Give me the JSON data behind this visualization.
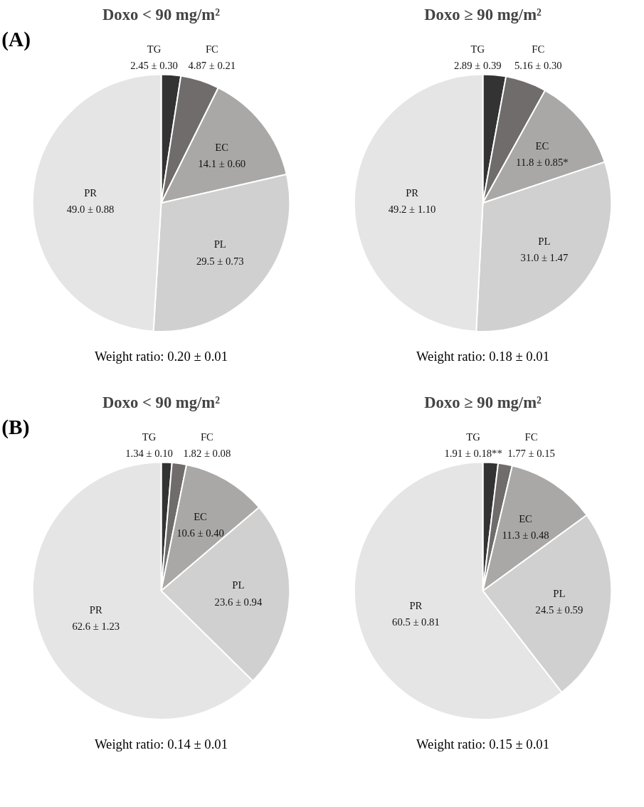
{
  "chart_data": [
    {
      "type": "pie",
      "title": "Doxo < 90 mg/m²",
      "categories": [
        "TG",
        "FC",
        "EC",
        "PL",
        "PR"
      ],
      "values": [
        2.45,
        4.87,
        14.1,
        29.5,
        49.0
      ],
      "value_labels": [
        "2.45 ± 0.30",
        "4.87 ± 0.21",
        "14.1 ± 0.60",
        "29.5 ± 0.73",
        "49.0 ± 0.88"
      ],
      "colors": [
        "#333333",
        "#6f6c6b",
        "#aaa8a7",
        "#d1d0d0",
        "#e5e5e5"
      ],
      "annotations": [
        "(A)",
        "Weight ratio: 0.20 ± 0.01"
      ]
    },
    {
      "type": "pie",
      "title": "Doxo ≥ 90 mg/m²",
      "categories": [
        "TG",
        "FC",
        "EC",
        "PL",
        "PR"
      ],
      "values": [
        2.89,
        5.16,
        11.8,
        31.0,
        49.2
      ],
      "value_labels": [
        "2.89 ± 0.39",
        "5.16 ± 0.30",
        "11.8 ± 0.85*",
        "31.0 ± 1.47",
        "49.2 ± 1.10"
      ],
      "colors": [
        "#333333",
        "#6f6c6b",
        "#aaa8a7",
        "#d1d0d0",
        "#e5e5e5"
      ],
      "annotations": [
        "Weight ratio: 0.18 ± 0.01"
      ]
    },
    {
      "type": "pie",
      "title": "Doxo < 90 mg/m²",
      "categories": [
        "TG",
        "FC",
        "EC",
        "PL",
        "PR"
      ],
      "values": [
        1.34,
        1.82,
        10.6,
        23.6,
        62.6
      ],
      "value_labels": [
        "1.34 ± 0.10",
        "1.82 ± 0.08",
        "10.6 ± 0.40",
        "23.6 ± 0.94",
        "62.6 ± 1.23"
      ],
      "colors": [
        "#333333",
        "#6f6c6b",
        "#aaa8a7",
        "#d1d0d0",
        "#e5e5e5"
      ],
      "annotations": [
        "(B)",
        "Weight ratio: 0.14 ± 0.01"
      ]
    },
    {
      "type": "pie",
      "title": "Doxo ≥ 90 mg/m²",
      "categories": [
        "TG",
        "FC",
        "EC",
        "PL",
        "PR"
      ],
      "values": [
        1.91,
        1.77,
        11.3,
        24.5,
        60.5
      ],
      "value_labels": [
        "1.91 ± 0.18**",
        "1.77 ± 0.15",
        "11.3 ± 0.48",
        "24.5 ± 0.59",
        "60.5 ± 0.81"
      ],
      "colors": [
        "#333333",
        "#6f6c6b",
        "#aaa8a7",
        "#d1d0d0",
        "#e5e5e5"
      ],
      "annotations": [
        "Weight ratio: 0.15 ± 0.01"
      ]
    }
  ]
}
